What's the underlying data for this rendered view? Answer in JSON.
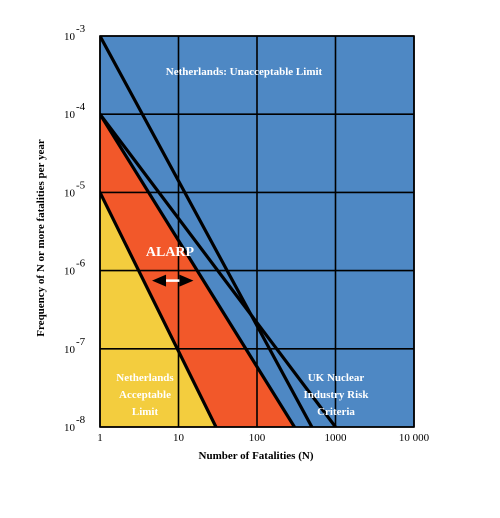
{
  "chart_data": {
    "type": "line",
    "x_axis": {
      "label": "Number of Fatalities (N)",
      "scale": "log",
      "range": [
        1,
        10000
      ],
      "ticks": [
        "1",
        "10",
        "100",
        "1000",
        "10 000"
      ]
    },
    "y_axis": {
      "label": "Frequency of N or more fatalities per year",
      "scale": "log",
      "range": [
        1e-08,
        0.001
      ],
      "tick_values": [
        0.001,
        0.0001,
        1e-05,
        1e-06,
        1e-07,
        1e-08
      ],
      "tick_mantissa": [
        "10",
        "10",
        "10",
        "10",
        "10",
        "10"
      ],
      "tick_exponents": [
        "-3",
        "-4",
        "-5",
        "-6",
        "-7",
        "-8"
      ]
    },
    "grid": true,
    "background_color": "#4e88c4",
    "series": [
      {
        "x": [
          1,
          500
        ],
        "y": [
          0.001,
          1e-08
        ],
        "color": "#000000"
      },
      {
        "x": [
          1,
          1000
        ],
        "y": [
          0.0001,
          1e-08
        ],
        "color": "#000000"
      },
      {
        "x": [
          1,
          300
        ],
        "y": [
          0.0001,
          1e-08
        ],
        "color": "#000000"
      },
      {
        "x": [
          1,
          30
        ],
        "y": [
          1e-05,
          1e-08
        ],
        "color": "#000000"
      }
    ],
    "regions": [
      {
        "color": "#f2582a",
        "polygon": [
          [
            1,
            0.0001
          ],
          [
            1,
            1e-05
          ],
          [
            30,
            1e-08
          ],
          [
            300,
            1e-08
          ]
        ]
      },
      {
        "color": "#f3cd3e",
        "polygon": [
          [
            1,
            1e-05
          ],
          [
            1,
            1e-08
          ],
          [
            30,
            1e-08
          ]
        ]
      }
    ],
    "annotations": {
      "unacceptable": {
        "text": "Netherlands: Unacceptable Limit"
      },
      "acceptable": {
        "lines": [
          "Netherlands",
          "Acceptable",
          "Limit"
        ]
      },
      "uk": {
        "lines": [
          "UK Nuclear",
          "Industry Risk",
          "Criteria"
        ]
      },
      "alarp": {
        "text": "ALARP",
        "arrow_from": [
          4.6,
          1e-06
        ],
        "arrow_to": [
          15.5,
          1e-06
        ]
      }
    }
  }
}
